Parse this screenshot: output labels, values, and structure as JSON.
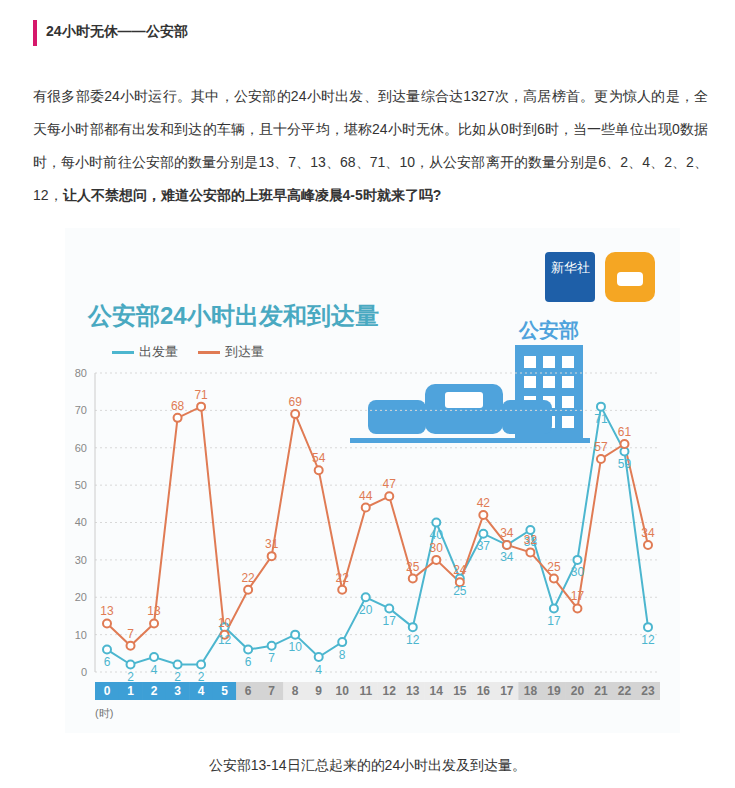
{
  "header": {
    "title": "24小时无休——公安部"
  },
  "paragraph": {
    "text": "有很多部委24小时运行。其中，公安部的24小时出发、到达量综合达1327次，高居榜首。更为惊人的是，全天每小时部都有出发和到达的车辆，且十分平均，堪称24小时无休。比如从0时到6时，当一些单位出现0数据时，每小时前往公安部的数量分别是13、7、13、68、71、10，从公安部离开的数量分别是6、2、4、2、2、12，",
    "bold": "让人不禁想问，难道公安部的上班早高峰凌晨4-5时就来了吗?"
  },
  "chart_data": {
    "type": "line",
    "title": "公安部24小时出发和到达量",
    "categories": [
      "0",
      "1",
      "2",
      "3",
      "4",
      "5",
      "6",
      "7",
      "8",
      "9",
      "10",
      "11",
      "12",
      "13",
      "14",
      "15",
      "16",
      "17",
      "18",
      "19",
      "20",
      "21",
      "22",
      "23"
    ],
    "x_unit": "(时)",
    "series": [
      {
        "name": "出发量",
        "color": "#4cb6cf",
        "marker": "circle",
        "values": [
          6,
          2,
          4,
          2,
          2,
          12,
          6,
          7,
          10,
          4,
          8,
          20,
          17,
          12,
          40,
          25,
          37,
          34,
          38,
          17,
          30,
          71,
          59,
          12
        ]
      },
      {
        "name": "到达量",
        "color": "#e07b54",
        "marker": "circle",
        "values": [
          13,
          7,
          13,
          68,
          71,
          10,
          22,
          31,
          69,
          54,
          22,
          44,
          47,
          25,
          30,
          24,
          42,
          34,
          32,
          25,
          17,
          57,
          61,
          34
        ]
      }
    ],
    "ylim": [
      0,
      80
    ],
    "yticks": [
      0,
      10,
      20,
      30,
      40,
      50,
      60,
      70,
      80
    ],
    "grid": true,
    "data_labels": true,
    "legend": "upper left",
    "annotations": [
      "新华社",
      "公安部"
    ]
  },
  "caption": "公安部13-14日汇总起来的的24小时出发及到达量。"
}
